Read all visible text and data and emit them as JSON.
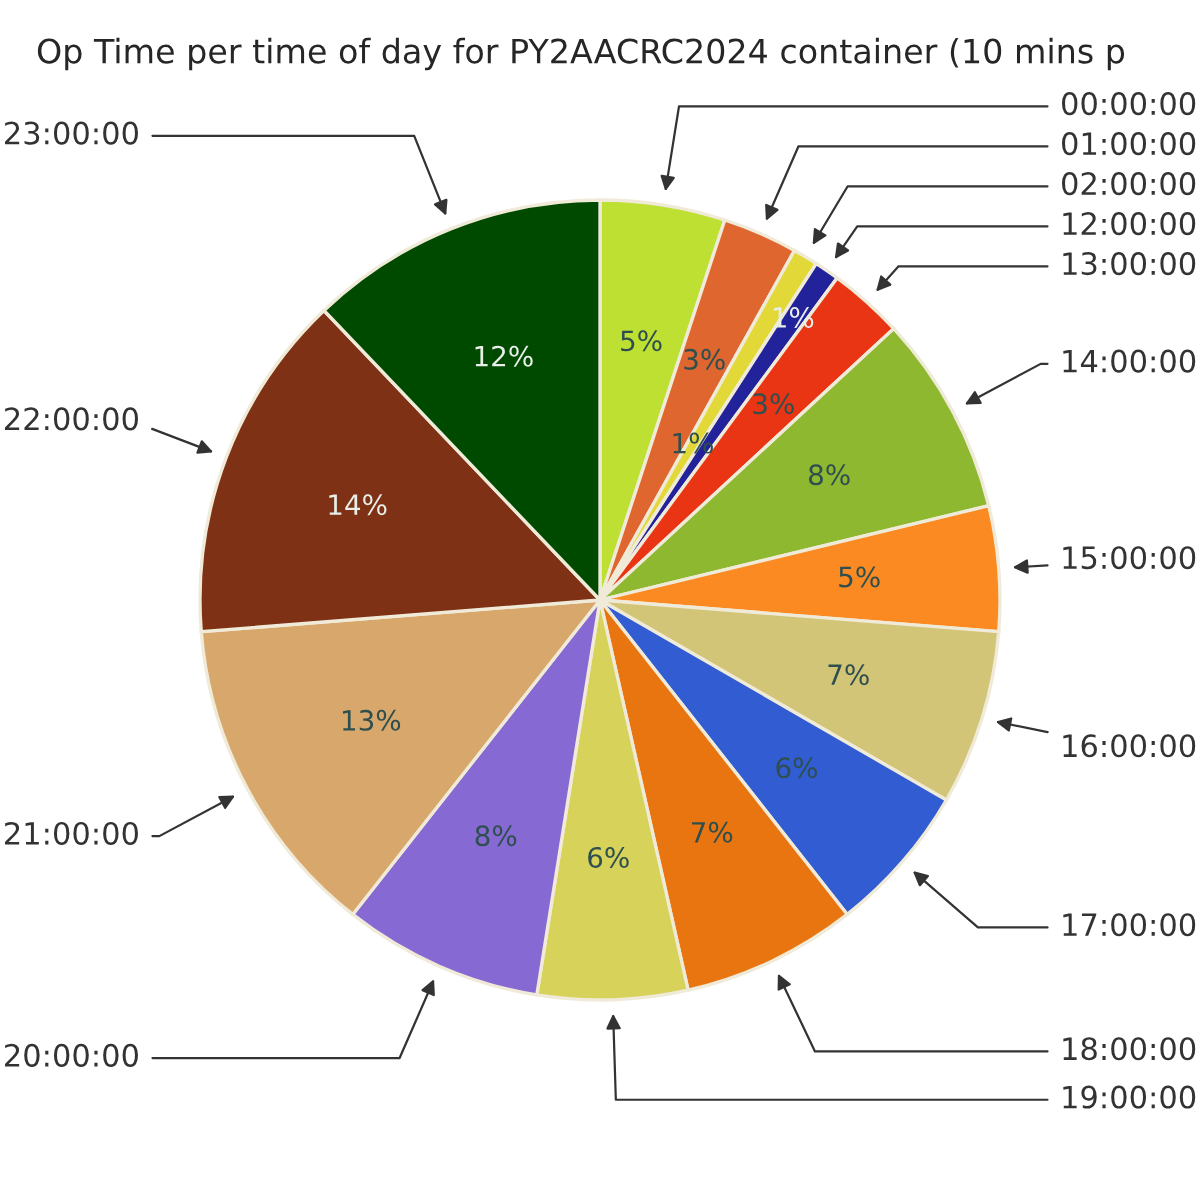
{
  "chart_data": {
    "type": "pie",
    "title": "Op Time per time of day for PY2AACRC2024 container (10 mins p",
    "categories": [
      "00:00:00",
      "01:00:00",
      "02:00:00",
      "12:00:00",
      "13:00:00",
      "14:00:00",
      "15:00:00",
      "16:00:00",
      "17:00:00",
      "18:00:00",
      "19:00:00",
      "20:00:00",
      "21:00:00",
      "22:00:00",
      "23:00:00"
    ],
    "values": [
      5,
      3,
      1,
      1,
      3,
      8,
      5,
      7,
      6,
      7,
      6,
      8,
      13,
      14,
      12
    ],
    "value_labels": [
      "5%",
      "3%",
      "1%",
      "1%",
      "3%",
      "8%",
      "5%",
      "7%",
      "6%",
      "7%",
      "6%",
      "8%",
      "13%",
      "14%",
      "12%"
    ],
    "colors": [
      "#bde033",
      "#e0662f",
      "#e2d838",
      "#22229a",
      "#ea3515",
      "#8fb831",
      "#fb8a22",
      "#d3c577",
      "#315cd2",
      "#e87510",
      "#d6d25a",
      "#8769d3",
      "#d8a76c",
      "#7e3114",
      "#004a00"
    ]
  }
}
